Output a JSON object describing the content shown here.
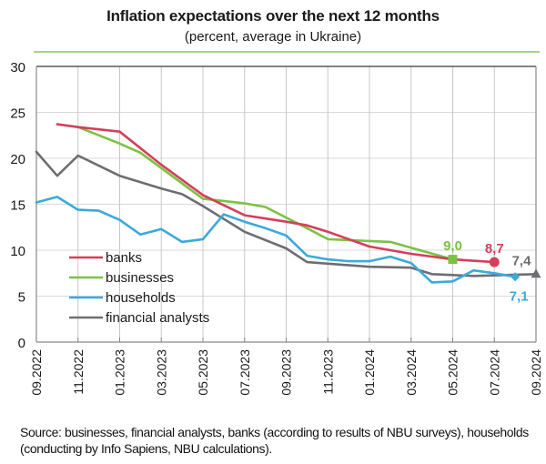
{
  "chart_data": {
    "type": "line",
    "title": "Inflation expectations over the next 12 months",
    "subtitle": "(percent,  average  in Ukraine)",
    "xlabel": "",
    "ylabel": "",
    "ylim": [
      0,
      30
    ],
    "yticks": [
      0,
      5,
      10,
      15,
      20,
      25,
      30
    ],
    "x_months": [
      "09.2022",
      "10.2022",
      "11.2022",
      "12.2022",
      "01.2023",
      "02.2023",
      "03.2023",
      "04.2023",
      "05.2023",
      "06.2023",
      "07.2023",
      "08.2023",
      "09.2023",
      "10.2023",
      "11.2023",
      "12.2023",
      "01.2024",
      "02.2024",
      "03.2024",
      "04.2024",
      "05.2024",
      "06.2024",
      "07.2024",
      "08.2024",
      "09.2024"
    ],
    "xtick_labels": [
      "09.2022",
      "11.2022",
      "01.2023",
      "03.2023",
      "05.2023",
      "07.2023",
      "09.2023",
      "11.2023",
      "01.2024",
      "03.2024",
      "05.2024",
      "07.2024",
      "09.2024"
    ],
    "grid": true,
    "legend": {
      "placement": "bottom-left",
      "entries": [
        "banks",
        "businesses",
        "households",
        "financial analysts"
      ]
    },
    "series": [
      {
        "name": "banks",
        "color": "#d43f5a",
        "points": [
          [
            1,
            23.7
          ],
          [
            2,
            23.4
          ],
          [
            4,
            22.9
          ],
          [
            6,
            19.3
          ],
          [
            8,
            16.0
          ],
          [
            10,
            13.8
          ],
          [
            12,
            13.1
          ],
          [
            13,
            12.7
          ],
          [
            14,
            12.0
          ],
          [
            16,
            10.4
          ],
          [
            18,
            9.6
          ],
          [
            20,
            9.0
          ],
          [
            22,
            8.7
          ]
        ],
        "end_label": "8,7",
        "end_marker": "circle"
      },
      {
        "name": "businesses",
        "color": "#7cc242",
        "points": [
          [
            2,
            23.4
          ],
          [
            4,
            21.6
          ],
          [
            5,
            20.6
          ],
          [
            8,
            15.6
          ],
          [
            10,
            15.1
          ],
          [
            11,
            14.7
          ],
          [
            13,
            12.4
          ],
          [
            14,
            11.2
          ],
          [
            15,
            11.1
          ],
          [
            16,
            11.0
          ],
          [
            17,
            10.9
          ],
          [
            20,
            9.0
          ]
        ],
        "end_label": "9,0",
        "end_marker": "square"
      },
      {
        "name": "households",
        "color": "#3aaadc",
        "points": [
          [
            0,
            15.2
          ],
          [
            1,
            15.8
          ],
          [
            2,
            14.4
          ],
          [
            3,
            14.3
          ],
          [
            4,
            13.3
          ],
          [
            5,
            11.7
          ],
          [
            6,
            12.3
          ],
          [
            7,
            10.9
          ],
          [
            8,
            11.2
          ],
          [
            9,
            13.9
          ],
          [
            10,
            13.1
          ],
          [
            11,
            12.4
          ],
          [
            12,
            11.6
          ],
          [
            13,
            9.4
          ],
          [
            14,
            9.0
          ],
          [
            15,
            8.8
          ],
          [
            16,
            8.8
          ],
          [
            17,
            9.3
          ],
          [
            18,
            8.6
          ],
          [
            19,
            6.5
          ],
          [
            20,
            6.6
          ],
          [
            21,
            7.8
          ],
          [
            22,
            7.5
          ],
          [
            23,
            7.1
          ]
        ],
        "end_label": "7,1",
        "end_marker": "diamond"
      },
      {
        "name": "financial analysts",
        "color": "#6d6e71",
        "points": [
          [
            0,
            20.7
          ],
          [
            1,
            18.1
          ],
          [
            2,
            20.3
          ],
          [
            4,
            18.1
          ],
          [
            6,
            16.7
          ],
          [
            7,
            16.1
          ],
          [
            8,
            14.8
          ],
          [
            10,
            12.0
          ],
          [
            12,
            10.2
          ],
          [
            13,
            8.7
          ],
          [
            16,
            8.2
          ],
          [
            18,
            8.1
          ],
          [
            19,
            7.4
          ],
          [
            21,
            7.2
          ],
          [
            24,
            7.4
          ]
        ],
        "end_label": "7,4",
        "end_marker": "triangle"
      }
    ]
  },
  "source_note": "Source: businesses, financial analysts, banks (according to results of NBU surveys), households (conducting  by Info Sapiens, NBU calculations)."
}
